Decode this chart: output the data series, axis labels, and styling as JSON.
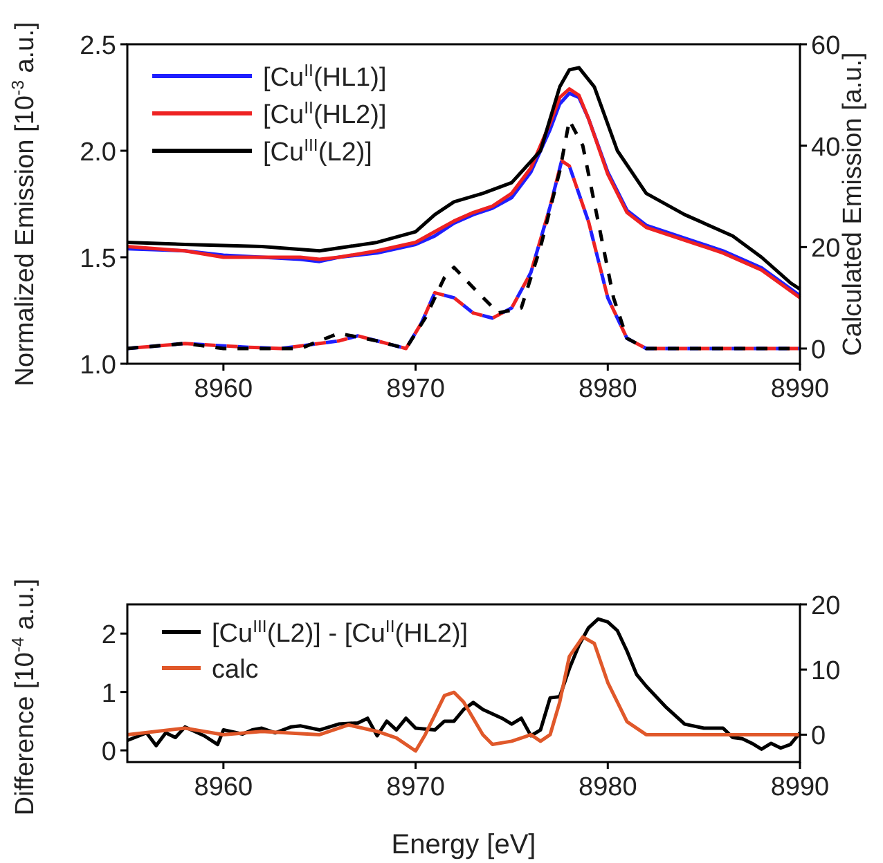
{
  "chart_data": [
    {
      "type": "line",
      "ylabel": "Normalized Emission [10$^{-3}$ a.u.]",
      "y2label": "Calculated Emission [a.u.]",
      "xlim": [
        8955,
        8990
      ],
      "xticks": [
        8960,
        8970,
        8980,
        8990
      ],
      "ylim": [
        1.0,
        2.5
      ],
      "yticks": [
        {
          "value": 1.0,
          "label": "1.0"
        },
        {
          "value": 1.5,
          "label": "1.5"
        },
        {
          "value": 2.0,
          "label": "2.0"
        },
        {
          "value": 2.5,
          "label": "2.5"
        }
      ],
      "y2lim": [
        -3,
        60
      ],
      "y2ticks": [
        0,
        20,
        40,
        60
      ],
      "legend": "top left",
      "series": [
        {
          "name": "[Cu$^{II}$(HL1)]",
          "color": "#1f1fff",
          "x": [
            8955,
            8958,
            8960,
            8962,
            8964,
            8965,
            8966,
            8968,
            8970,
            8971,
            8972,
            8973,
            8974,
            8975,
            8976,
            8977,
            8977.5,
            8978,
            8978.5,
            8979,
            8980,
            8981,
            8982,
            8984,
            8986,
            8988,
            8990
          ],
          "values": [
            1.54,
            1.53,
            1.51,
            1.5,
            1.49,
            1.48,
            1.5,
            1.52,
            1.56,
            1.6,
            1.66,
            1.7,
            1.73,
            1.78,
            1.9,
            2.1,
            2.22,
            2.27,
            2.25,
            2.15,
            1.9,
            1.72,
            1.65,
            1.59,
            1.53,
            1.45,
            1.32
          ]
        },
        {
          "name": "[Cu$^{II}$(HL2)]",
          "color": "#ee2222",
          "x": [
            8955,
            8958,
            8960,
            8962,
            8964,
            8965,
            8966,
            8968,
            8970,
            8971,
            8972,
            8973,
            8974,
            8975,
            8976,
            8977,
            8977.5,
            8978,
            8978.5,
            8979,
            8980,
            8981,
            8982,
            8984,
            8986,
            8988,
            8990
          ],
          "values": [
            1.55,
            1.53,
            1.5,
            1.5,
            1.5,
            1.49,
            1.5,
            1.53,
            1.57,
            1.62,
            1.67,
            1.71,
            1.74,
            1.8,
            1.92,
            2.13,
            2.25,
            2.29,
            2.26,
            2.15,
            1.89,
            1.71,
            1.64,
            1.58,
            1.52,
            1.44,
            1.31
          ]
        },
        {
          "name": "[Cu$^{III}$(L2)]",
          "color": "#000000",
          "x": [
            8955,
            8958,
            8962,
            8965,
            8968,
            8970,
            8971,
            8972,
            8973.5,
            8975,
            8976.5,
            8977.5,
            8978,
            8978.5,
            8979.3,
            8980.5,
            8982,
            8984,
            8986.5,
            8988,
            8989.5,
            8990
          ],
          "values": [
            1.57,
            1.56,
            1.55,
            1.53,
            1.57,
            1.62,
            1.7,
            1.76,
            1.8,
            1.85,
            2.0,
            2.3,
            2.38,
            2.39,
            2.3,
            2.0,
            1.8,
            1.7,
            1.6,
            1.5,
            1.38,
            1.35
          ]
        },
        {
          "color": "#1f1fff",
          "axis": "y2",
          "line_style": "dashed",
          "x": [
            8955,
            8958,
            8961,
            8963,
            8966,
            8967,
            8968.5,
            8969.5,
            8970.3,
            8971,
            8972,
            8973,
            8974,
            8975,
            8976,
            8977,
            8977.6,
            8978,
            8979,
            8980,
            8981,
            8982,
            8990
          ],
          "values": [
            0,
            1,
            0.3,
            0,
            1.5,
            2.5,
            1,
            0,
            5,
            11,
            10,
            7,
            6,
            8,
            15,
            28,
            37,
            36,
            25,
            10,
            2,
            0,
            0
          ]
        },
        {
          "color": "#ee2222",
          "axis": "y2",
          "line_style": "dashed",
          "x": [
            8955,
            8958,
            8961,
            8963,
            8966,
            8967,
            8968.5,
            8969.5,
            8970.3,
            8971,
            8972,
            8973,
            8974,
            8975,
            8976,
            8977,
            8977.6,
            8978,
            8979,
            8980,
            8981,
            8982,
            8990
          ],
          "values": [
            0,
            1,
            0.3,
            0,
            1.5,
            2.5,
            1,
            0,
            5,
            11,
            10,
            7,
            6,
            8,
            15,
            28,
            37,
            36,
            25,
            10,
            2,
            0,
            0
          ]
        },
        {
          "color": "#000000",
          "axis": "y2",
          "line_style": "dashed",
          "x": [
            8955,
            8958,
            8960,
            8964,
            8966,
            8968,
            8969.5,
            8970.5,
            8971.5,
            8972,
            8973,
            8974.3,
            8975.5,
            8976.5,
            8977.5,
            8978,
            8978.7,
            8979.5,
            8980.3,
            8981,
            8982,
            8990
          ],
          "values": [
            0,
            1,
            0,
            0,
            3,
            1.5,
            0,
            6,
            14,
            16,
            12,
            7,
            8,
            20,
            35,
            45,
            40,
            25,
            10,
            2,
            0,
            0
          ]
        }
      ]
    },
    {
      "type": "line",
      "xlabel": "Energy [eV]",
      "ylabel": "Difference [10$^{-4}$ a.u.]",
      "xlim": [
        8955,
        8990
      ],
      "xticks": [
        8960,
        8970,
        8980,
        8990
      ],
      "ylim": [
        -0.2,
        2.5
      ],
      "yticks": [
        0,
        1,
        2
      ],
      "y2lim": [
        -4.2,
        20
      ],
      "y2ticks": [
        0,
        10,
        20
      ],
      "legend": "top left",
      "series": [
        {
          "name": "[Cu$^{III}$(L2)] - [Cu$^{II}$(HL2)]",
          "color": "#000000",
          "x": [
            8955,
            8956,
            8956.5,
            8957,
            8957.5,
            8958,
            8959,
            8959.7,
            8960,
            8961,
            8961.5,
            8962,
            8962.7,
            8963.5,
            8964,
            8965,
            8966,
            8967,
            8967.5,
            8968,
            8968.5,
            8969,
            8969.5,
            8970,
            8971,
            8971.5,
            8972,
            8972.5,
            8973,
            8973.5,
            8974.5,
            8975,
            8975.5,
            8976,
            8976.5,
            8977,
            8977.5,
            8978,
            8978.5,
            8979,
            8979.5,
            8980,
            8980.5,
            8981,
            8981.5,
            8982,
            8983,
            8984,
            8985,
            8986,
            8986.5,
            8987,
            8987.5,
            8988,
            8988.5,
            8989,
            8989.5,
            8990
          ],
          "values": [
            0.17,
            0.3,
            0.08,
            0.3,
            0.22,
            0.4,
            0.25,
            0.1,
            0.35,
            0.28,
            0.35,
            0.38,
            0.3,
            0.4,
            0.42,
            0.35,
            0.45,
            0.47,
            0.55,
            0.25,
            0.5,
            0.35,
            0.55,
            0.38,
            0.35,
            0.5,
            0.5,
            0.7,
            0.82,
            0.7,
            0.55,
            0.45,
            0.55,
            0.25,
            0.35,
            0.9,
            0.92,
            1.4,
            1.8,
            2.1,
            2.25,
            2.2,
            2.05,
            1.7,
            1.3,
            1.1,
            0.75,
            0.45,
            0.38,
            0.38,
            0.22,
            0.2,
            0.12,
            0.02,
            0.12,
            0.04,
            0.1,
            0.3
          ]
        },
        {
          "name": "calc",
          "color": "#e0582a",
          "axis": "y2",
          "x": [
            8955,
            8958,
            8960,
            8962,
            8965,
            8966.5,
            8968,
            8969,
            8970,
            8970.5,
            8971.5,
            8972,
            8972.5,
            8973.5,
            8974,
            8975,
            8976,
            8976.5,
            8977,
            8977.5,
            8978,
            8978.7,
            8979.3,
            8980,
            8981,
            8982,
            8990
          ],
          "values": [
            0,
            1,
            0,
            0.5,
            0,
            1.5,
            0.5,
            -0.5,
            -2.5,
            0,
            6,
            6.5,
            5,
            0,
            -1.5,
            -1,
            0,
            -1,
            0,
            5,
            12,
            15,
            14,
            8,
            2,
            0,
            0
          ]
        }
      ]
    }
  ]
}
